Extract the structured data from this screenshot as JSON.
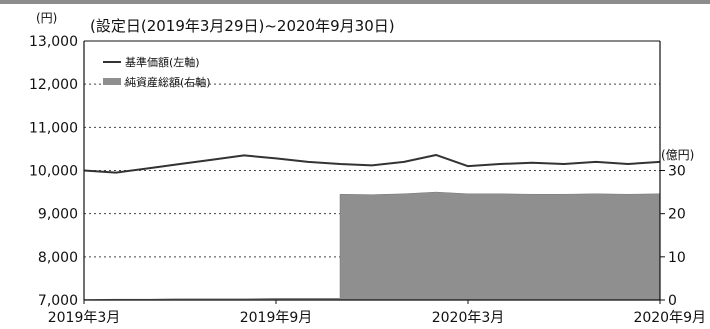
{
  "chart_data": {
    "type": "line",
    "title": "(設定日(2019年3月29日)~2020年9月30日)",
    "y_left_unit": "(円)",
    "y_right_unit": "(億円)",
    "ylim_left": [
      7000,
      13000
    ],
    "ylim_right": [
      0,
      60
    ],
    "y_left_ticks": [
      "7,000",
      "8,000",
      "9,000",
      "10,000",
      "11,000",
      "12,000",
      "13,000"
    ],
    "y_right_ticks": [
      "0",
      "10",
      "20",
      "30"
    ],
    "x_ticks": [
      "2019年3月",
      "2019年9月",
      "2020年3月",
      "2020年9月"
    ],
    "grid": "horizontal dotted",
    "legend_position": "top-left",
    "colors": {
      "line": "#333333",
      "area": "#8f8f8f",
      "topbar": "#8c8c8c"
    },
    "series": [
      {
        "name": "基準価額(左軸)",
        "type": "line",
        "axis": "left",
        "x": [
          "2019年3月",
          "2019年4月",
          "2019年5月",
          "2019年6月",
          "2019年7月",
          "2019年8月",
          "2019年9月",
          "2019年10月",
          "2019年11月",
          "2019年12月",
          "2020年1月",
          "2020年2月",
          "2020年3月",
          "2020年4月",
          "2020年5月",
          "2020年6月",
          "2020年7月",
          "2020年8月",
          "2020年9月"
        ],
        "values": [
          10000,
          9950,
          10050,
          10150,
          10250,
          10350,
          10280,
          10200,
          10150,
          10120,
          10200,
          10360,
          10100,
          10150,
          10180,
          10150,
          10200,
          10150,
          10200
        ]
      },
      {
        "name": "純資産総額(右軸)",
        "type": "area",
        "axis": "right",
        "x": [
          "2019年3月",
          "2019年4月",
          "2019年5月",
          "2019年6月",
          "2019年7月",
          "2019年8月",
          "2019年9月",
          "2019年10月",
          "2019年11月",
          "2019年12月",
          "2020年1月",
          "2020年2月",
          "2020年3月",
          "2020年4月",
          "2020年5月",
          "2020年6月",
          "2020年7月",
          "2020年8月",
          "2020年9月"
        ],
        "values": [
          0.1,
          0.2,
          0.2,
          0.3,
          0.3,
          0.3,
          0.4,
          0.4,
          24.5,
          24.4,
          24.6,
          25.0,
          24.6,
          24.6,
          24.5,
          24.5,
          24.6,
          24.5,
          24.6
        ]
      }
    ]
  }
}
